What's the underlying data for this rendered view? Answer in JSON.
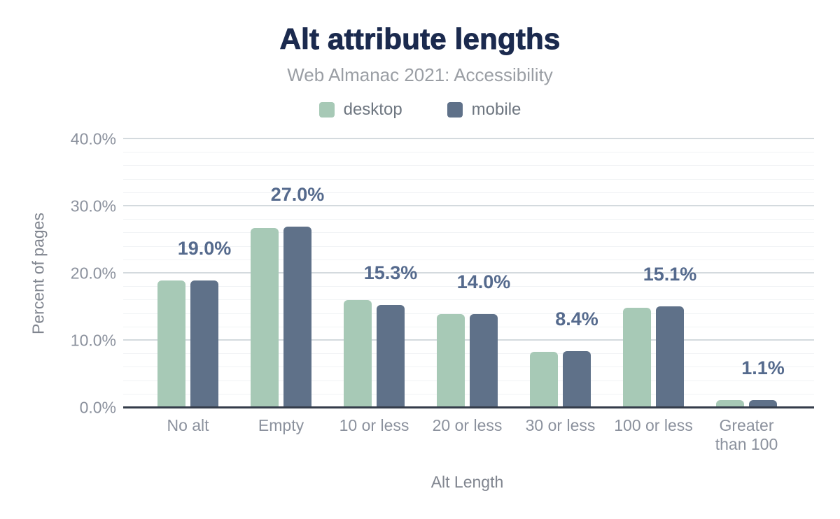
{
  "page": {
    "background": "#ffffff"
  },
  "colors": {
    "title": "#1b2a4e",
    "subtitle": "#9a9ea4",
    "legend_text": "#6e7680",
    "axis_text": "#8b919d",
    "axis_title": "#80858f",
    "data_label": "#556a8d",
    "baseline": "#343c4a",
    "grid_major": "#d4dade",
    "grid_minor": "#f1f3f5",
    "desktop": "#a7c9b6",
    "mobile": "#5f7189"
  },
  "chart_data": {
    "type": "bar",
    "title": "Alt attribute lengths",
    "subtitle": "Web Almanac 2021: Accessibility",
    "xlabel": "Alt Length",
    "ylabel": "Percent of pages",
    "categories": [
      "No alt",
      "Empty",
      "10 or less",
      "20 or less",
      "30 or less",
      "100 or less",
      "Greater than 100"
    ],
    "series": [
      {
        "name": "desktop",
        "color": "#a7c9b6",
        "values": [
          19.0,
          26.8,
          16.0,
          14.0,
          8.3,
          14.9,
          1.1
        ]
      },
      {
        "name": "mobile",
        "color": "#5f7189",
        "values": [
          19.0,
          27.0,
          15.3,
          14.0,
          8.4,
          15.1,
          1.1
        ]
      }
    ],
    "data_labels": [
      "19.0%",
      "27.0%",
      "15.3%",
      "14.0%",
      "8.4%",
      "15.1%",
      "1.1%"
    ],
    "data_labels_anchor": "mobile",
    "ylim": [
      0,
      40
    ],
    "yticks": [
      {
        "value": 0,
        "label": "0.0%"
      },
      {
        "value": 10,
        "label": "10.0%"
      },
      {
        "value": 20,
        "label": "20.0%"
      },
      {
        "value": 30,
        "label": "30.0%"
      },
      {
        "value": 40,
        "label": "40.0%"
      }
    ],
    "grid": {
      "minor_step": 2,
      "major_step": 10,
      "grid_on": true
    },
    "legend_position": "top"
  }
}
